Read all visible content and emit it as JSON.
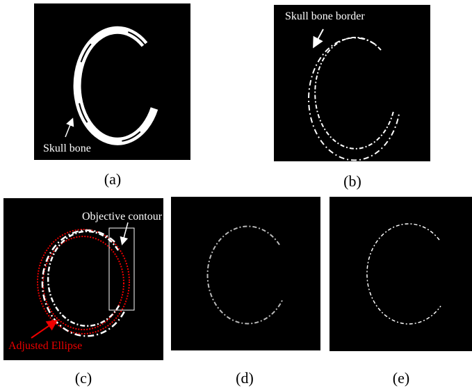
{
  "panels": [
    {
      "label": "(a)",
      "annotation": "Skull bone"
    },
    {
      "label": "(b)",
      "annotation": "Skull bone border"
    },
    {
      "label": "(c)",
      "annotations": [
        "Objective contour",
        "Adjusted Ellipse"
      ]
    },
    {
      "label": "(d)"
    },
    {
      "label": "(e)"
    }
  ]
}
